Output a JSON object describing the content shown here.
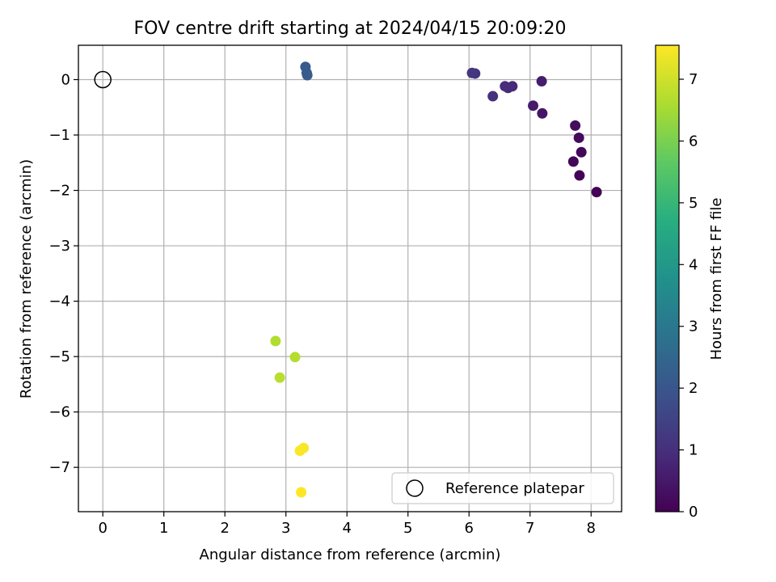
{
  "chart_data": {
    "type": "scatter",
    "title": "FOV centre drift starting at 2024/04/15 20:09:20",
    "xlabel": "Angular distance from reference (arcmin)",
    "ylabel": "Rotation from reference (arcmin)",
    "xlim": [
      -0.4,
      8.5
    ],
    "ylim": [
      -7.8,
      0.62
    ],
    "xticks": [
      0,
      1,
      2,
      3,
      4,
      5,
      6,
      7,
      8
    ],
    "yticks": [
      0,
      -1,
      -2,
      -3,
      -4,
      -5,
      -6,
      -7
    ],
    "xtick_labels": [
      "0",
      "1",
      "2",
      "3",
      "4",
      "5",
      "6",
      "7",
      "8"
    ],
    "ytick_labels": [
      "0",
      "−1",
      "−2",
      "−3",
      "−4",
      "−5",
      "−6",
      "−7"
    ],
    "grid": true,
    "legend": {
      "position": "lower-right",
      "entries": [
        "Reference platepar"
      ]
    },
    "reference_point": {
      "x": 0,
      "y": 0,
      "label": "Reference platepar"
    },
    "colorbar": {
      "label": "Hours from first FF file",
      "min": 0,
      "max": 7.55,
      "ticks": [
        0,
        1,
        2,
        3,
        4,
        5,
        6,
        7
      ],
      "tick_labels": [
        "0",
        "1",
        "2",
        "3",
        "4",
        "5",
        "6",
        "7"
      ],
      "colormap": "viridis"
    },
    "points": [
      {
        "x": 8.09,
        "y": -2.03,
        "c": 0.0
      },
      {
        "x": 7.81,
        "y": -1.73,
        "c": 0.05
      },
      {
        "x": 7.71,
        "y": -1.48,
        "c": 0.1
      },
      {
        "x": 7.84,
        "y": -1.31,
        "c": 0.15
      },
      {
        "x": 7.8,
        "y": -1.05,
        "c": 0.2
      },
      {
        "x": 7.74,
        "y": -0.83,
        "c": 0.25
      },
      {
        "x": 7.2,
        "y": -0.61,
        "c": 0.45
      },
      {
        "x": 7.05,
        "y": -0.47,
        "c": 0.55
      },
      {
        "x": 7.19,
        "y": -0.03,
        "c": 0.6
      },
      {
        "x": 6.71,
        "y": -0.12,
        "c": 0.85
      },
      {
        "x": 6.64,
        "y": -0.15,
        "c": 0.9
      },
      {
        "x": 6.59,
        "y": -0.12,
        "c": 0.95
      },
      {
        "x": 6.39,
        "y": -0.3,
        "c": 1.05
      },
      {
        "x": 6.1,
        "y": 0.11,
        "c": 1.15
      },
      {
        "x": 6.05,
        "y": 0.12,
        "c": 1.2
      },
      {
        "x": 3.32,
        "y": 0.23,
        "c": 2.1
      },
      {
        "x": 3.34,
        "y": 0.12,
        "c": 2.15
      },
      {
        "x": 3.35,
        "y": 0.08,
        "c": 2.2
      },
      {
        "x": 2.83,
        "y": -4.72,
        "c": 6.65
      },
      {
        "x": 3.15,
        "y": -5.01,
        "c": 6.7
      },
      {
        "x": 2.9,
        "y": -5.38,
        "c": 6.75
      },
      {
        "x": 3.29,
        "y": -6.65,
        "c": 7.5
      },
      {
        "x": 3.23,
        "y": -6.7,
        "c": 7.52
      },
      {
        "x": 3.25,
        "y": -7.45,
        "c": 7.55
      }
    ]
  }
}
